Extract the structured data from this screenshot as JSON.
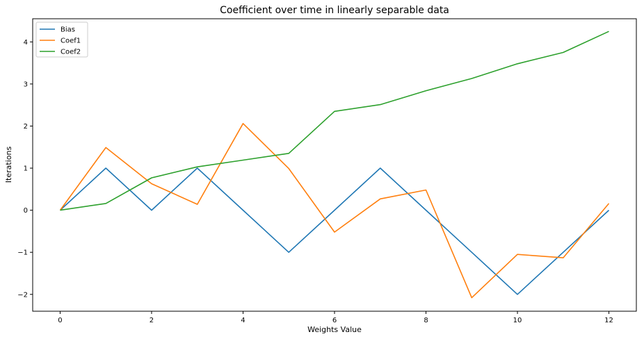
{
  "chart_data": {
    "type": "line",
    "title": "Coefficient over time in linearly separable data",
    "xlabel": "Weights Value",
    "ylabel": "Iterations",
    "x": [
      0,
      1,
      2,
      3,
      4,
      5,
      6,
      7,
      8,
      9,
      10,
      11,
      12
    ],
    "xlim": [
      -0.6,
      12.6
    ],
    "ylim": [
      -2.4,
      4.55
    ],
    "xticks": [
      0,
      2,
      4,
      6,
      8,
      10,
      12
    ],
    "xtick_labels": [
      "0",
      "2",
      "4",
      "6",
      "8",
      "10",
      "12"
    ],
    "yticks": [
      -2,
      -1,
      0,
      1,
      2,
      3,
      4
    ],
    "ytick_labels": [
      "−2",
      "−1",
      "0",
      "1",
      "2",
      "3",
      "4"
    ],
    "grid": false,
    "legend_position": "top-left",
    "series": [
      {
        "name": "Bias",
        "color": "#1f77b4",
        "values": [
          0,
          1,
          0,
          1,
          0,
          -1,
          0,
          1,
          0,
          -1,
          -2,
          -1,
          0
        ]
      },
      {
        "name": "Coef1",
        "color": "#ff7f0e",
        "values": [
          0,
          1.49,
          0.63,
          0.14,
          2.06,
          0.99,
          -0.52,
          0.27,
          0.48,
          -2.08,
          -1.05,
          -1.13,
          0.16
        ]
      },
      {
        "name": "Coef2",
        "color": "#2ca02c",
        "values": [
          0,
          0.16,
          0.77,
          1.03,
          1.19,
          1.35,
          2.35,
          2.51,
          2.84,
          3.13,
          3.48,
          3.75,
          4.25
        ]
      }
    ]
  }
}
